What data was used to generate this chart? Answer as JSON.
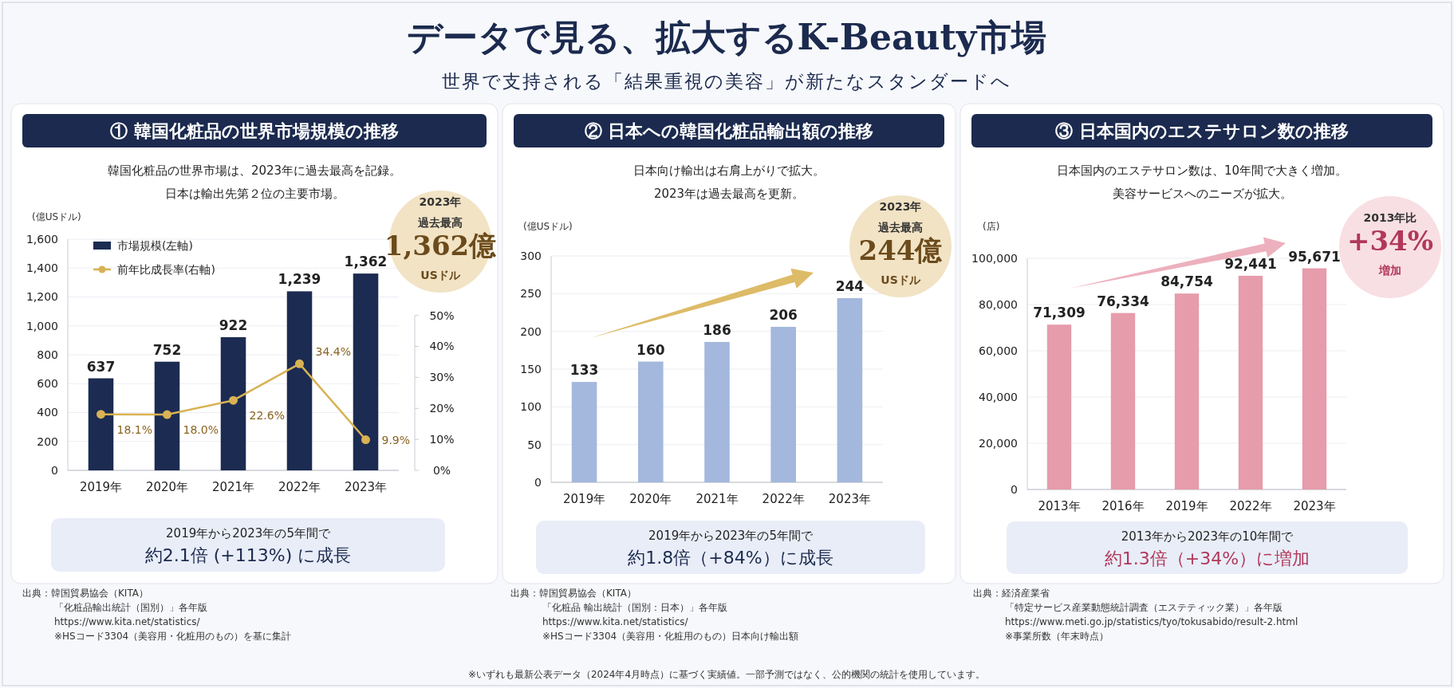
{
  "chart_data": [
    {
      "type": "other",
      "title": "データで見る、拡大するK-Beauty市場",
      "subtitle": "世界で支持される「結果重視の美容」が新たなスタンダードへ",
      "annotations": [
        "※いずれも最新公表データ（2024年4月時点）に基づく実績値。一部予測ではなく、公的機関の統計を使用しています。"
      ]
    },
    {
      "type": "bar",
      "title": "① 韓国化粧品の世界市場規模の推移",
      "subtitle": "韓国化粧品の世界市場は、2023年に過去最高を記録。日本は輸出先第２位の主要市場。",
      "ylabel": "(億USドル)",
      "categories": [
        "2019年",
        "2020年",
        "2021年",
        "2022年",
        "2023年"
      ],
      "series": [
        {
          "name": "市場規模(左軸)",
          "color": "#1c2b52",
          "values": [
            637,
            752,
            922,
            1239,
            1362
          ],
          "value_labels": [
            "637",
            "752",
            "922",
            "1,239",
            "1,362"
          ]
        },
        {
          "name": "前年比成長率(右軸)",
          "type": "line",
          "axis": "y2",
          "color": "#d8b253",
          "values": [
            18.1,
            18.0,
            22.6,
            34.4,
            9.9
          ],
          "value_labels": [
            "18.1%",
            "18.0%",
            "22.6%",
            "34.4%",
            "9.9%"
          ]
        }
      ],
      "ylim": [
        0,
        1600
      ],
      "yticks": [
        0,
        200,
        400,
        600,
        800,
        {
          "value": 1000,
          "label": "1,000"
        },
        {
          "value": 1200,
          "label": "1,200"
        },
        {
          "value": 1400,
          "label": "1,400"
        },
        {
          "value": 1600,
          "label": "1,600"
        }
      ],
      "y2lim": [
        0,
        50
      ],
      "y2ticks": [
        {
          "value": 0,
          "label": "0%"
        },
        {
          "value": 10,
          "label": "10%"
        },
        {
          "value": 20,
          "label": "20%"
        },
        {
          "value": 30,
          "label": "30%"
        },
        {
          "value": 40,
          "label": "40%"
        },
        {
          "value": 50,
          "label": "50%"
        }
      ],
      "grid": "y",
      "legend": "top left",
      "marker": "circle",
      "annotations": [
        "2023年",
        "過去最高",
        "1,362億",
        "USドル",
        "2019年から2023年の5年間で",
        "約2.1倍 (+113%) に成長",
        "出典：韓国貿易協会（KITA）",
        "「化粧品輸出統計（国別）」各年版",
        "https://www.kita.net/statistics/",
        "※HSコード3304（美容用・化粧用のもの）を基に集計"
      ]
    },
    {
      "type": "bar",
      "title": "② 日本への韓国化粧品輸出額の推移",
      "subtitle": "日本向け輸出は右肩上がりで拡大。2023年は過去最高を更新。",
      "ylabel": "(億USドル)",
      "categories": [
        "2019年",
        "2020年",
        "2021年",
        "2022年",
        "2023年"
      ],
      "values": [
        133,
        160,
        186,
        206,
        244
      ],
      "color": "#a4b8dd",
      "data_labels": true,
      "ylim": [
        0,
        300
      ],
      "yticks": [
        0,
        50,
        100,
        150,
        200,
        250,
        300
      ],
      "grid": "y",
      "annotations": [
        "2023年",
        "過去最高",
        "244億",
        "USドル",
        "2019年から2023年の5年間で",
        "約1.8倍（+84%）に成長",
        "出典：韓国貿易協会（KITA）",
        "「化粧品 輸出統計（国別：日本）」各年版",
        "https://www.kita.net/statistics/",
        "※HSコード3304（美容用・化粧用のもの）日本向け輸出額"
      ]
    },
    {
      "type": "bar",
      "title": "③ 日本国内のエステサロン数の推移",
      "subtitle": "日本国内のエステサロン数は、10年間で大きく増加。美容サービスへのニーズが拡大。",
      "ylabel": "(店)",
      "categories": [
        "2013年",
        "2016年",
        "2019年",
        "2022年",
        "2023年"
      ],
      "values": [
        71309,
        76334,
        84754,
        92441,
        95671
      ],
      "value_labels": [
        "71,309",
        "76,334",
        "84,754",
        "92,441",
        "95,671"
      ],
      "color": "#e69cab",
      "ylim": [
        0,
        100000
      ],
      "yticks": [
        0,
        {
          "value": 20000,
          "label": "20,000"
        },
        {
          "value": 40000,
          "label": "40,000"
        },
        {
          "value": 60000,
          "label": "60,000"
        },
        {
          "value": 80000,
          "label": "80,000"
        },
        {
          "value": 100000,
          "label": "100,000"
        }
      ],
      "grid": "y",
      "annotations": [
        "2013年比",
        "+34%",
        "増加",
        "2013年から2023年の10年間で",
        "約1.3倍（+34%）に増加",
        "出典：経済産業省",
        "「特定サービス産業動態統計調査（エステティック業）」各年版",
        "https://www.meti.go.jp/statistics/tyo/tokusabido/result-2.html",
        "※事業所数（年末時点）"
      ]
    }
  ]
}
